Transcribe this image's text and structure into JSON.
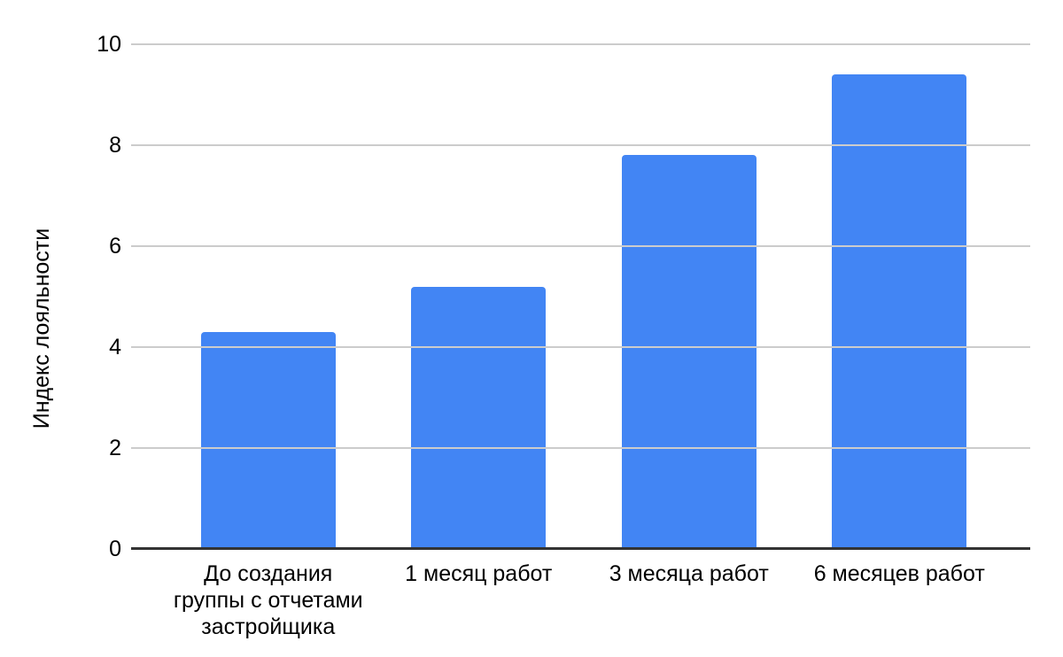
{
  "chart_data": {
    "type": "bar",
    "title": "",
    "categories": [
      "До создания\nгруппы с отчетами\nзастройщика",
      "1 месяц работ",
      "3 месяца работ",
      "6 месяцев работ"
    ],
    "values": [
      4.3,
      5.2,
      7.8,
      9.4
    ],
    "xlabel": "",
    "ylabel": "Индекс лояльности",
    "ylim": [
      0,
      10
    ],
    "yticks": [
      0,
      2,
      4,
      6,
      8,
      10
    ],
    "grid": "horizontal",
    "legend": "none",
    "bar_color": "#4285f4",
    "gridline_color": "#cccccc",
    "axis_line_color": "#333333",
    "text_color": "#000000",
    "background_color": "#ffffff"
  }
}
